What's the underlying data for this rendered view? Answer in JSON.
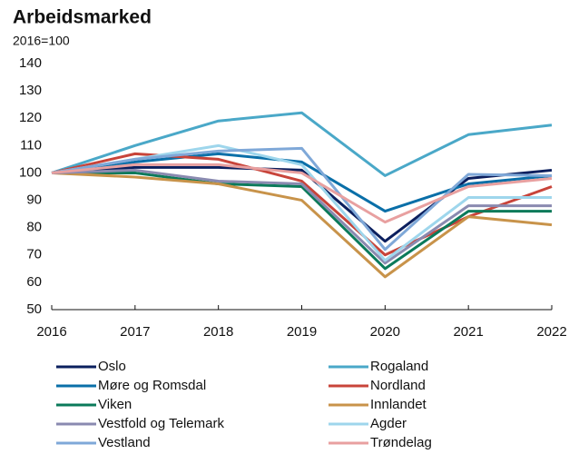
{
  "chart_data": {
    "type": "line",
    "title": "Arbeidsmarked",
    "subtitle": "2016=100",
    "x": [
      2016,
      2017,
      2018,
      2019,
      2020,
      2021,
      2022
    ],
    "xlim": [
      2016,
      2022
    ],
    "xticks": [
      2016,
      2017,
      2018,
      2019,
      2020,
      2021,
      2022
    ],
    "ylim": [
      50,
      140
    ],
    "yticks": [
      50,
      60,
      70,
      80,
      90,
      100,
      110,
      120,
      130,
      140
    ],
    "grid": false,
    "series": [
      {
        "name": "Oslo",
        "color": "#0b1f5e",
        "values": [
          100,
          102,
          102,
          101,
          75,
          98,
          101
        ]
      },
      {
        "name": "Rogaland",
        "color": "#4aa8c8",
        "values": [
          100,
          110,
          119,
          122,
          99,
          114,
          117.5
        ]
      },
      {
        "name": "Møre og Romsdal",
        "color": "#0a6fa8",
        "values": [
          100,
          104,
          107,
          104,
          86,
          96,
          99
        ]
      },
      {
        "name": "Nordland",
        "color": "#c8443a",
        "values": [
          100,
          107,
          105,
          97,
          70,
          84,
          95
        ]
      },
      {
        "name": "Viken",
        "color": "#0b7a5a",
        "values": [
          100,
          100,
          96,
          95,
          65,
          86,
          86
        ]
      },
      {
        "name": "Innlandet",
        "color": "#c8934a",
        "values": [
          100,
          98.5,
          96,
          90,
          62,
          84,
          81
        ]
      },
      {
        "name": "Vestfold og Telemark",
        "color": "#8a8ab0",
        "values": [
          100,
          101,
          97,
          96,
          67,
          88,
          88
        ]
      },
      {
        "name": "Agder",
        "color": "#9ed6ec",
        "values": [
          100,
          105,
          110,
          103,
          68,
          91,
          91
        ]
      },
      {
        "name": "Vestland",
        "color": "#7fa8d8",
        "values": [
          100,
          105,
          108,
          109,
          72,
          99.5,
          99
        ]
      },
      {
        "name": "Trøndelag",
        "color": "#e8a0a0",
        "values": [
          100,
          103,
          103,
          100,
          82,
          95,
          98
        ]
      }
    ]
  }
}
